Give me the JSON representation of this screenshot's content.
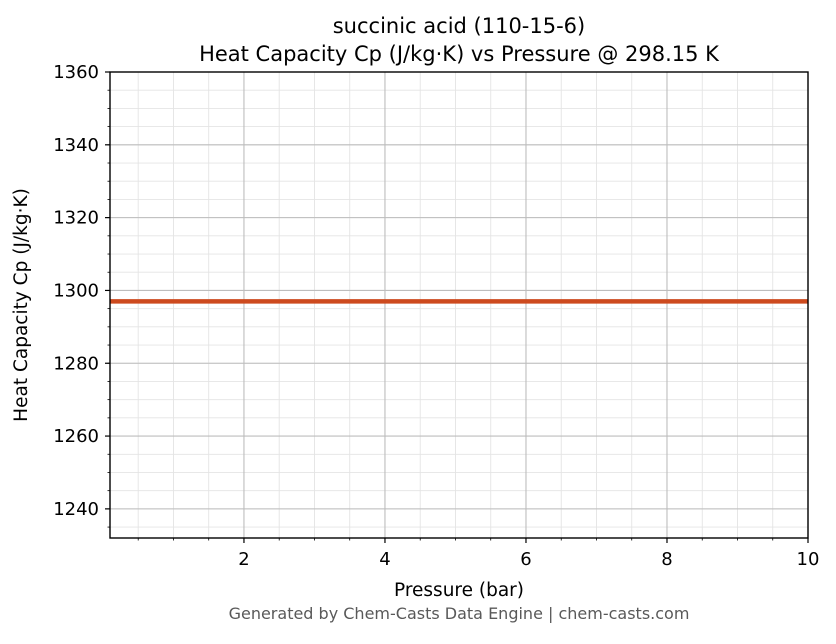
{
  "header": {
    "title_line1": "succinic acid (110-15-6)",
    "title_line2": "Heat Capacity Cp (J/kg·K) vs Pressure @ 298.15 K"
  },
  "footer": {
    "text": "Generated by Chem-Casts Data Engine | chem-casts.com"
  },
  "chart_data": {
    "type": "line",
    "title": "succinic acid (110-15-6)",
    "subtitle": "Heat Capacity Cp (J/kg·K) vs Pressure @ 298.15 K",
    "xlabel": "Pressure (bar)",
    "ylabel": "Heat Capacity Cp (J/kg·K)",
    "xlim": [
      0.1,
      10
    ],
    "ylim": [
      1232,
      1360
    ],
    "x_ticks": [
      2,
      4,
      6,
      8,
      10
    ],
    "y_ticks": [
      1240,
      1260,
      1280,
      1300,
      1320,
      1340,
      1360
    ],
    "x_minor_step": 0.5,
    "y_minor_step": 5,
    "grid": true,
    "legend": "none",
    "colors": {
      "line": "#cd4a1e",
      "grid_major": "#bdbdbd",
      "grid_minor": "#e4e4e4",
      "frame": "#000000",
      "tick_text": "#000000"
    },
    "series": [
      {
        "name": "Heat Capacity Cp",
        "color": "#cd4a1e",
        "x": [
          0.1,
          2,
          4,
          6,
          8,
          10
        ],
        "y": [
          1297,
          1297,
          1297,
          1297,
          1297,
          1297
        ]
      }
    ]
  }
}
